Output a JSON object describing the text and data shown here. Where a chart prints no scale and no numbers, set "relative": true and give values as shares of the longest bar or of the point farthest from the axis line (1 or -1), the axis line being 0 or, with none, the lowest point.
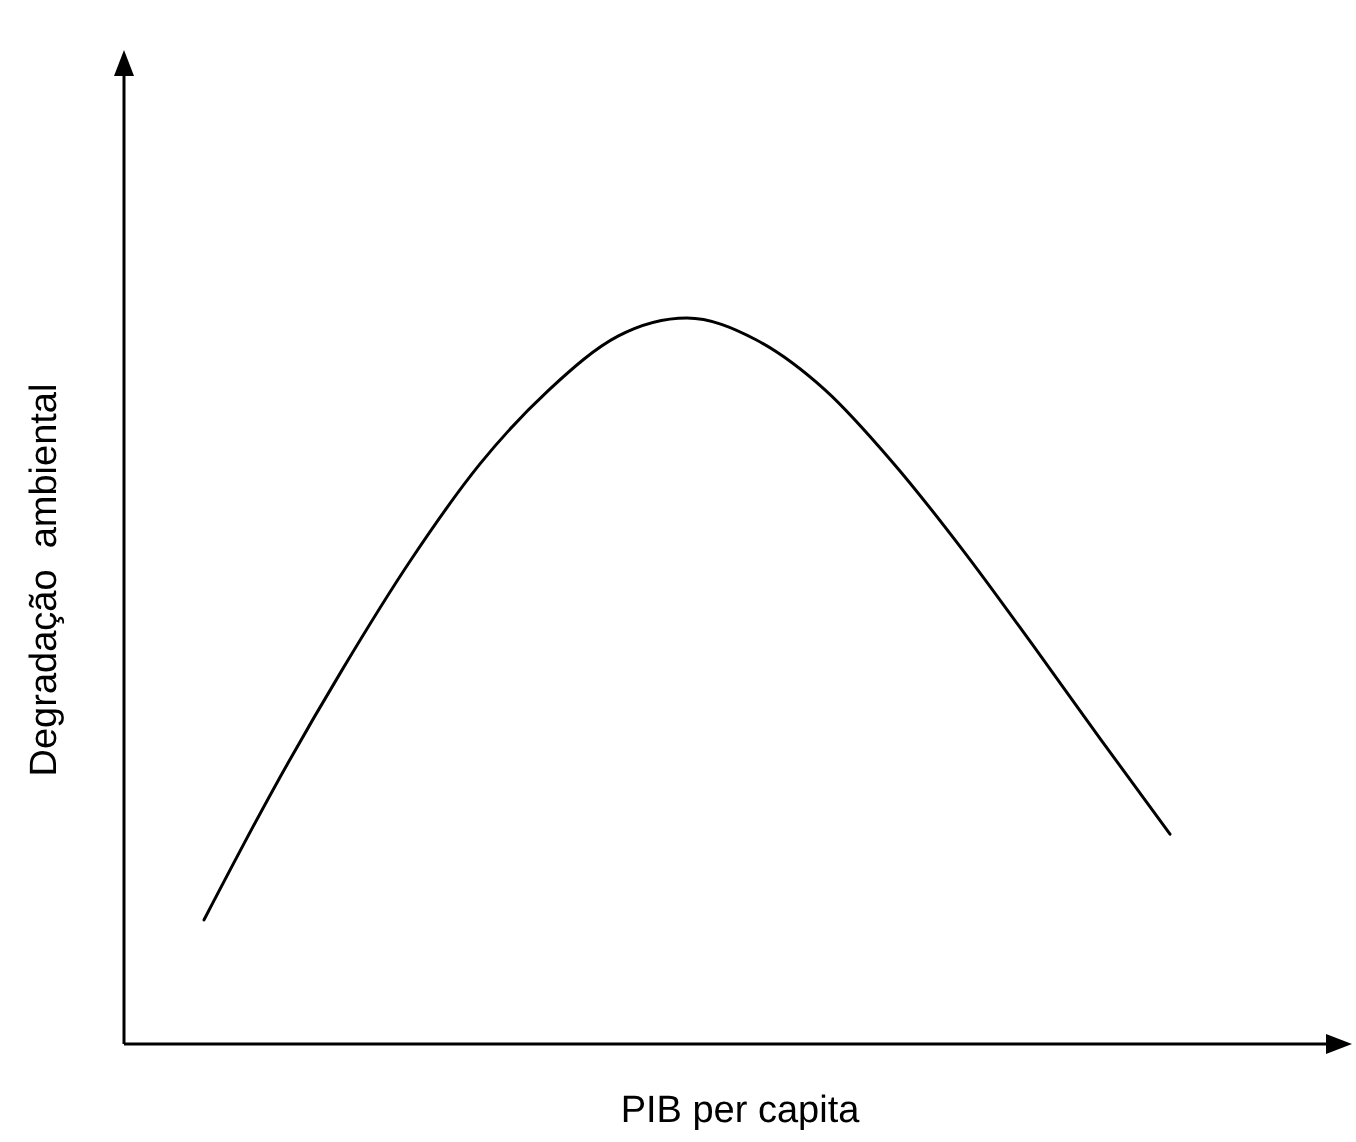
{
  "chart_data": {
    "type": "line",
    "relative": true,
    "xlabel": "PIB per capita",
    "ylabel": "Degradação  ambiental",
    "categories": [
      null,
      null,
      null,
      null,
      null,
      null,
      null,
      null,
      null,
      null,
      null,
      null,
      null,
      null,
      null
    ],
    "series": [
      {
        "color": "#000000",
        "values": [
          0.171,
          0.35,
          0.515,
          0.667,
          0.799,
          0.901,
          0.975,
          1,
          0.97,
          0.901,
          0.799,
          0.68,
          0.551,
          0.419,
          0.289
        ]
      }
    ]
  }
}
